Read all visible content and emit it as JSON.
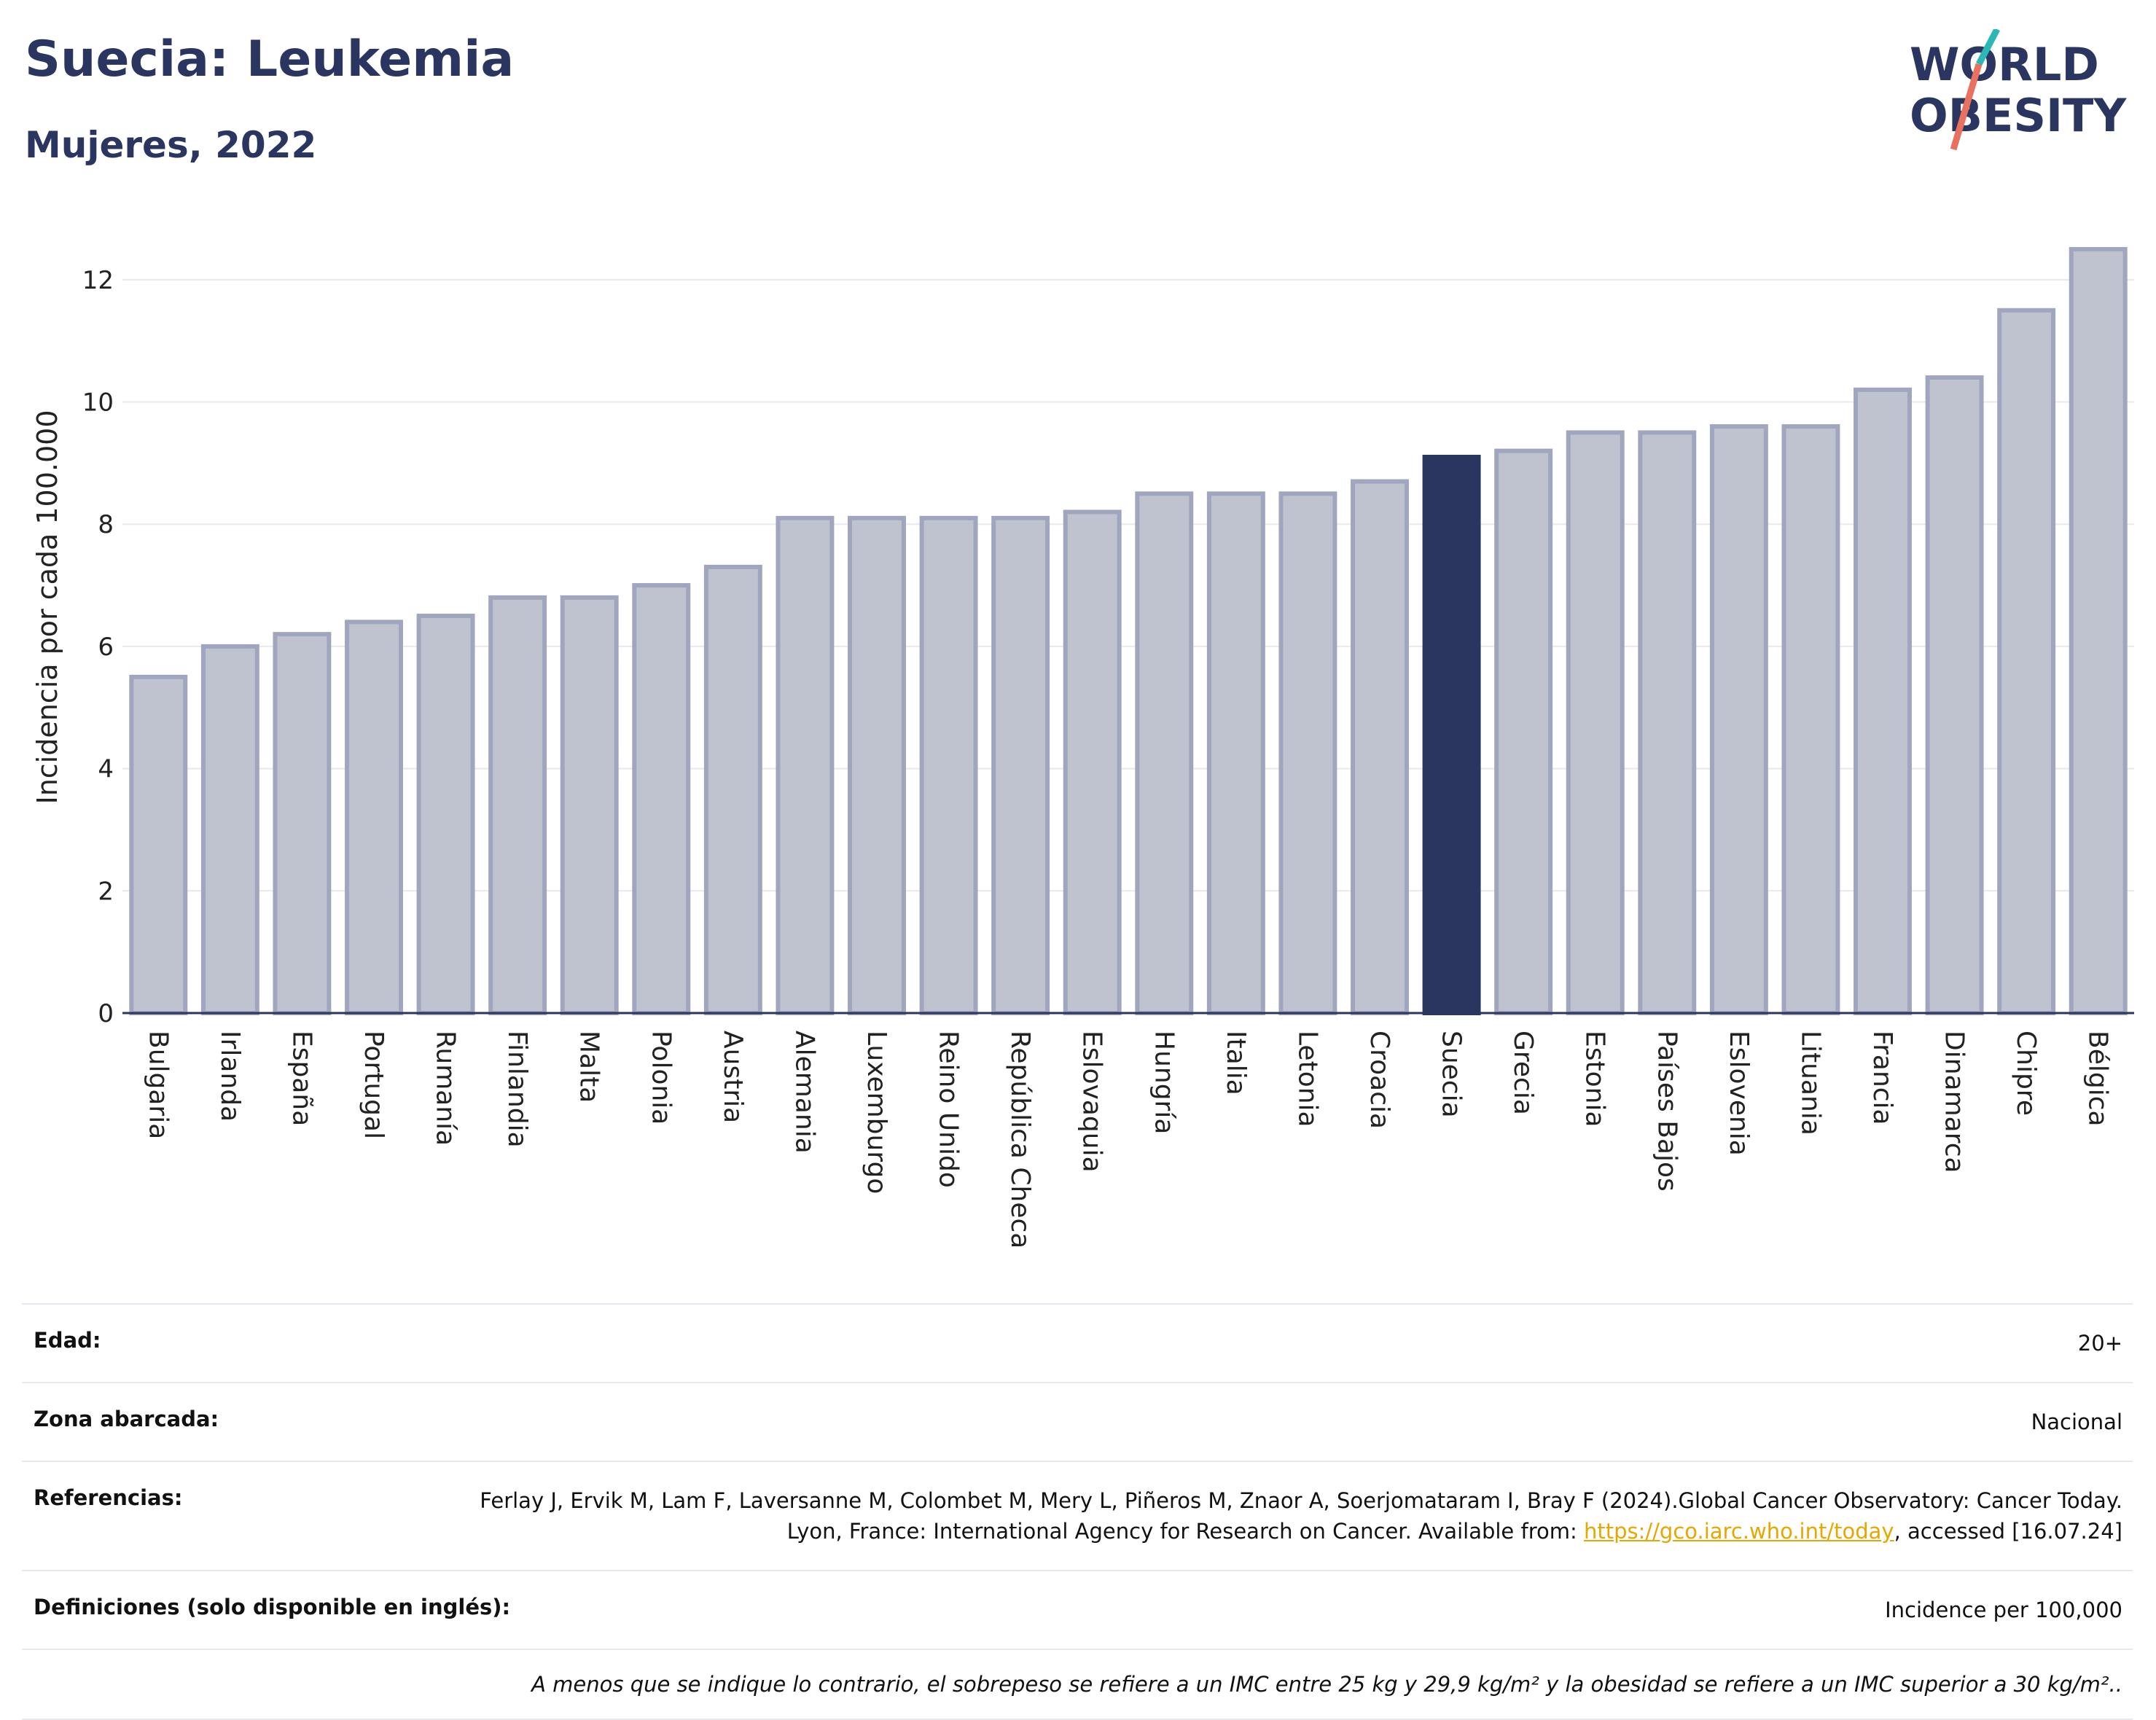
{
  "header": {
    "title": "Suecia: Leukemia",
    "subtitle": "Mujeres, 2022",
    "logo_line1": "WORLD",
    "logo_line2": "OBESITY"
  },
  "colors": {
    "bar": "#bfc3d0",
    "bar_border": "#a0a6bd",
    "highlight": "#2a3560",
    "title": "#2a3560",
    "grid": "#e8e8ee",
    "link": "#e6a800"
  },
  "chart_data": {
    "type": "bar",
    "categories": [
      "Bulgaria",
      "Irlanda",
      "España",
      "Portugal",
      "Rumanía",
      "Finlandia",
      "Malta",
      "Polonia",
      "Austria",
      "Alemania",
      "Luxemburgo",
      "Reino Unido",
      "República Checa",
      "Eslovaquia",
      "Hungría",
      "Italia",
      "Letonia",
      "Croacia",
      "Suecia",
      "Grecia",
      "Estonia",
      "Países Bajos",
      "Eslovenia",
      "Lituania",
      "Francia",
      "Dinamarca",
      "Chipre",
      "Bélgica"
    ],
    "values": [
      5.5,
      6.0,
      6.2,
      6.4,
      6.5,
      6.8,
      6.8,
      7.0,
      7.3,
      8.1,
      8.1,
      8.1,
      8.1,
      8.2,
      8.5,
      8.5,
      8.5,
      8.7,
      9.1,
      9.2,
      9.5,
      9.5,
      9.6,
      9.6,
      10.2,
      10.4,
      11.5,
      12.5
    ],
    "highlight": "Suecia",
    "ylabel": "Incidencia por cada 100.000",
    "ylim": [
      0,
      13
    ],
    "yticks": [
      0,
      2,
      4,
      6,
      8,
      10,
      12
    ],
    "grid": true
  },
  "info": {
    "edad_label": "Edad:",
    "edad_value": "20+",
    "zona_label": "Zona abarcada:",
    "zona_value": "Nacional",
    "ref_label": "Referencias:",
    "ref_text_1": "Ferlay J, Ervik M, Lam F, Laversanne M, Colombet M, Mery L, Piñeros M, Znaor A, Soerjomataram I, Bray F (2024).Global Cancer Observatory: Cancer Today. Lyon, France: International Agency for Research on Cancer. Available from: ",
    "ref_link": "https://gco.iarc.who.int/today",
    "ref_text_2": ", accessed [16.07.24]",
    "def_label": "Definiciones (solo disponible en inglés):",
    "def_value": "Incidence per 100,000",
    "note": "A menos que se indique lo contrario, el sobrepeso se refiere a un IMC entre 25 kg y 29,9 kg/m² y la obesidad se refiere a un IMC superior a 30 kg/m².."
  }
}
